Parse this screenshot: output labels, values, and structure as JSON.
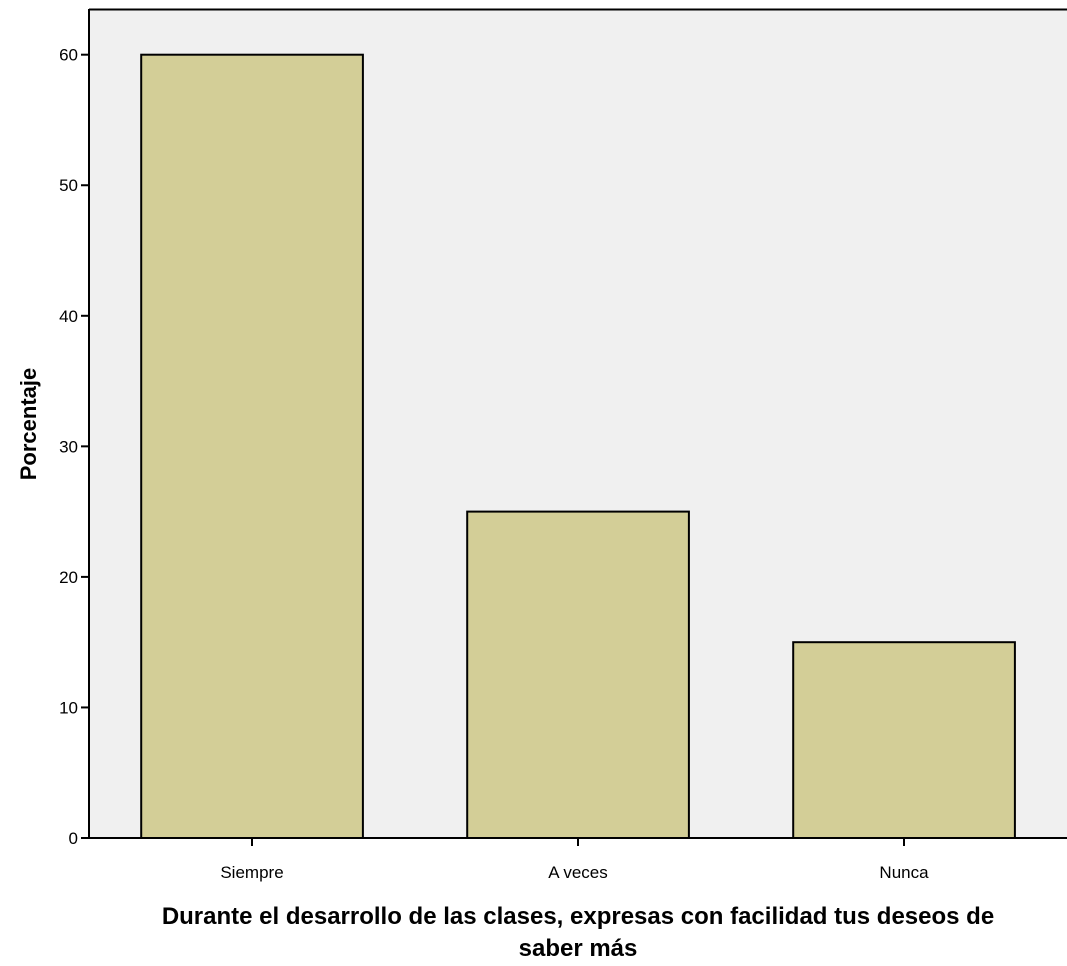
{
  "chart_data": {
    "type": "bar",
    "title": "",
    "categories": [
      "Siempre",
      "A veces",
      "Nunca"
    ],
    "values": [
      60,
      25,
      15
    ],
    "xlabel": "Durante el desarrollo de las clases, expresas con facilidad tus deseos de saber más",
    "xlabel_lines": [
      "Durante el desarrollo de las clases, expresas con facilidad tus deseos de",
      "saber más"
    ],
    "ylabel": "Porcentaje",
    "ylim": [
      0,
      63.5
    ],
    "yticks": [
      "0",
      "10",
      "20",
      "30",
      "40",
      "50",
      "60"
    ],
    "grid": false,
    "legend": "none",
    "colors": {
      "background": "#f0f0f0",
      "bar_fill": "#d3ce97",
      "bar_stroke": "#000000",
      "axis": "#000000"
    }
  }
}
